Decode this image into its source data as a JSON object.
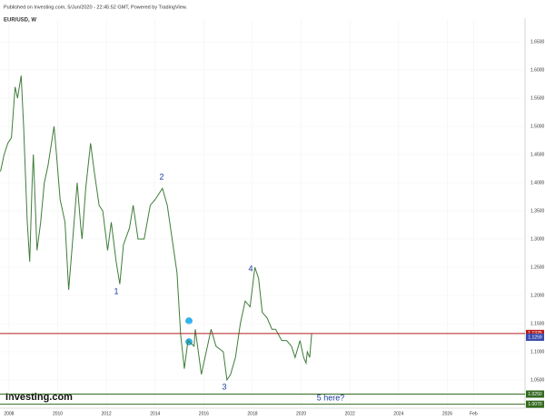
{
  "header": {
    "published": "Published on Investing.com, 5/Jun/2020 - 22:45:52 GMT, Powered by TradingView.",
    "logo": "Investing.com"
  },
  "chart_data": {
    "type": "line",
    "title": "EUR/USD, W",
    "color": "#3f7d3a",
    "grid": true,
    "x": [
      2007.65,
      2007.8,
      2007.95,
      2008.1,
      2008.25,
      2008.35,
      2008.5,
      2008.6,
      2008.75,
      2008.85,
      2008.95,
      2009.0,
      2009.15,
      2009.3,
      2009.45,
      2009.6,
      2009.85,
      2009.95,
      2010.1,
      2010.3,
      2010.45,
      2010.6,
      2010.8,
      2010.95,
      2011.0,
      2011.15,
      2011.35,
      2011.5,
      2011.7,
      2011.85,
      2012.05,
      2012.2,
      2012.4,
      2012.55,
      2012.7,
      2012.95,
      2013.1,
      2013.3,
      2013.55,
      2013.8,
      2014.0,
      2014.3,
      2014.5,
      2014.7,
      2014.9,
      2015.05,
      2015.2,
      2015.35,
      2015.6,
      2015.65,
      2015.9,
      2016.1,
      2016.3,
      2016.5,
      2016.8,
      2016.95,
      2017.1,
      2017.3,
      2017.5,
      2017.7,
      2017.9,
      2018.1,
      2018.25,
      2018.4,
      2018.6,
      2018.8,
      2018.95,
      2019.2,
      2019.4,
      2019.6,
      2019.75,
      2019.95,
      2020.1,
      2020.2,
      2020.25,
      2020.35,
      2020.43
    ],
    "values": [
      1.42,
      1.45,
      1.47,
      1.48,
      1.57,
      1.55,
      1.59,
      1.5,
      1.33,
      1.26,
      1.4,
      1.45,
      1.28,
      1.33,
      1.4,
      1.43,
      1.5,
      1.45,
      1.37,
      1.33,
      1.21,
      1.29,
      1.4,
      1.32,
      1.3,
      1.39,
      1.47,
      1.42,
      1.36,
      1.35,
      1.28,
      1.33,
      1.26,
      1.22,
      1.29,
      1.32,
      1.36,
      1.3,
      1.3,
      1.36,
      1.37,
      1.39,
      1.36,
      1.3,
      1.24,
      1.13,
      1.07,
      1.12,
      1.11,
      1.14,
      1.06,
      1.1,
      1.14,
      1.11,
      1.1,
      1.05,
      1.06,
      1.09,
      1.15,
      1.19,
      1.18,
      1.25,
      1.23,
      1.17,
      1.16,
      1.14,
      1.14,
      1.12,
      1.12,
      1.11,
      1.09,
      1.12,
      1.09,
      1.08,
      1.1,
      1.09,
      1.1325
    ],
    "xlim": [
      2007.63,
      2029.08
    ],
    "xticks": [
      2008,
      2010,
      2012,
      2014,
      2016,
      2018,
      2020,
      2022,
      2024,
      2026,
      {
        "value": 2027.08,
        "label": "Feb"
      }
    ],
    "ylim": [
      1.0,
      1.69
    ],
    "yticks": [
      {
        "value": 1.05,
        "label": "1.0500"
      },
      {
        "value": 1.1,
        "label": "1.1000"
      },
      {
        "value": 1.15,
        "label": "1.1500"
      },
      {
        "value": 1.2,
        "label": "1.2000"
      },
      {
        "value": 1.25,
        "label": "1.2500"
      },
      {
        "value": 1.3,
        "label": "1.3000"
      },
      {
        "value": 1.35,
        "label": "1.3500"
      },
      {
        "value": 1.4,
        "label": "1.4000"
      },
      {
        "value": 1.45,
        "label": "1.4500"
      },
      {
        "value": 1.5,
        "label": "1.5000"
      },
      {
        "value": 1.55,
        "label": "1.5500"
      },
      {
        "value": 1.6,
        "label": "1.6000"
      },
      {
        "value": 1.65,
        "label": "1.6500"
      }
    ],
    "levels": [
      {
        "value": 1.1325,
        "color": "#b71c1c",
        "line": true
      },
      {
        "value": 1.1259,
        "color": "#3949ab",
        "line": false
      },
      {
        "value": 1.025,
        "label": "1.0250",
        "color": "#33691e",
        "line": true
      },
      {
        "value": 1.007,
        "label": "1.0070",
        "color": "#33691e",
        "line": true
      }
    ],
    "annotations": [
      "1",
      "2",
      "3",
      "4",
      "5 here?"
    ]
  }
}
